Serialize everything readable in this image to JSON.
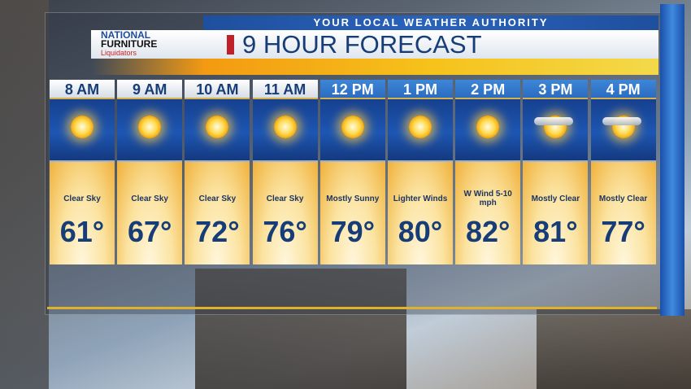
{
  "header": {
    "tagline": "YOUR LOCAL WEATHER AUTHORITY",
    "title": "9 HOUR FORECAST",
    "sponsor": {
      "line1": "NATIONAL",
      "line2": "FURNITURE",
      "line3": "Liquidators"
    }
  },
  "colors": {
    "accent_red": "#c0202a",
    "title_blue": "#173d78",
    "header_blue": "#2b6cc0"
  },
  "forecast": [
    {
      "time": "8 AM",
      "condition": "Clear Sky",
      "temp": "61°",
      "icon": "sun-icon"
    },
    {
      "time": "9 AM",
      "condition": "Clear Sky",
      "temp": "67°",
      "icon": "sun-icon"
    },
    {
      "time": "10 AM",
      "condition": "Clear Sky",
      "temp": "72°",
      "icon": "sun-icon"
    },
    {
      "time": "11 AM",
      "condition": "Clear Sky",
      "temp": "76°",
      "icon": "sun-icon"
    },
    {
      "time": "12 PM",
      "condition": "Mostly Sunny",
      "temp": "79°",
      "icon": "sun-icon"
    },
    {
      "time": "1 PM",
      "condition": "Lighter Winds",
      "temp": "80°",
      "icon": "sun-icon"
    },
    {
      "time": "2 PM",
      "condition": "W Wind 5-10 mph",
      "temp": "82°",
      "icon": "sun-icon"
    },
    {
      "time": "3 PM",
      "condition": "Mostly Clear",
      "temp": "81°",
      "icon": "sun-cloud-icon"
    },
    {
      "time": "4 PM",
      "condition": "Mostly Clear",
      "temp": "77°",
      "icon": "sun-cloud-icon"
    }
  ]
}
